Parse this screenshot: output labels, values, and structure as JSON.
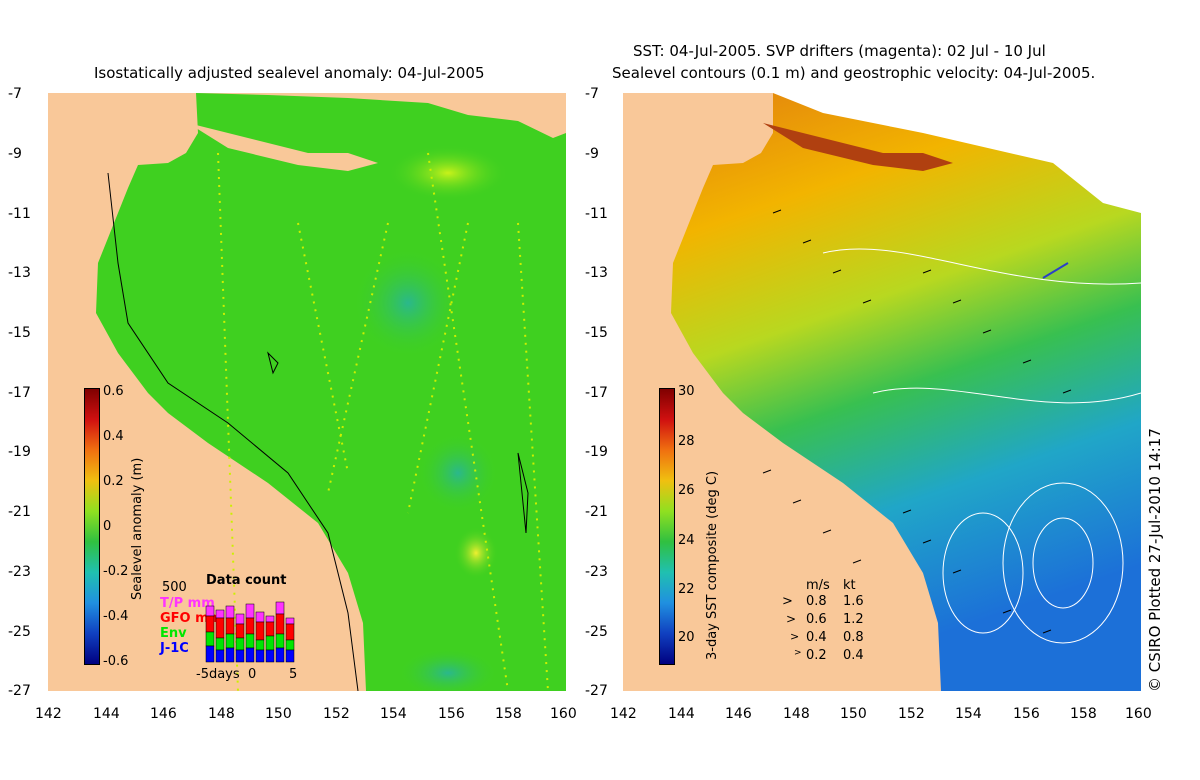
{
  "left_panel": {
    "title": "Isostatically adjusted sealevel anomaly: 04-Jul-2005",
    "colorbar": {
      "label": "Sealevel anomaly (m)",
      "ticks": [
        "0.6",
        "0.4",
        "0.2",
        "0",
        "-0.2",
        "-0.4",
        "-0.6"
      ]
    },
    "data_count": {
      "title": "Data count",
      "scale": "500",
      "legend": [
        {
          "label": "T/P mm",
          "color": "#ff33ff"
        },
        {
          "label": "GFO mm",
          "color": "#ff0000"
        },
        {
          "label": "Env",
          "color": "#00e600"
        },
        {
          "label": "J-1C",
          "color": "#0000ff"
        }
      ],
      "x_ticks": [
        "-5days",
        "0",
        "5"
      ]
    }
  },
  "right_panel": {
    "title_line1": "SST: 04-Jul-2005. SVP drifters (magenta): 02 Jul - 10 Jul",
    "title_line2": "Sealevel contours (0.1 m) and geostrophic velocity: 04-Jul-2005.",
    "colorbar": {
      "label": "3-day SST composite (deg C)",
      "ticks": [
        "30",
        "28",
        "26",
        "24",
        "22",
        "20"
      ]
    },
    "velocity_legend": {
      "header_ms": "m/s",
      "header_kt": "kt",
      "rows": [
        {
          "ms": "0.8",
          "kt": "1.6"
        },
        {
          "ms": "0.6",
          "kt": "1.2"
        },
        {
          "ms": "0.4",
          "kt": "0.8"
        },
        {
          "ms": "0.2",
          "kt": "0.4"
        }
      ]
    }
  },
  "axes": {
    "y_ticks": [
      "-7",
      "-9",
      "-11",
      "-13",
      "-15",
      "-17",
      "-19",
      "-21",
      "-23",
      "-25",
      "-27"
    ],
    "x_ticks": [
      "142",
      "144",
      "146",
      "148",
      "150",
      "152",
      "154",
      "156",
      "158",
      "160"
    ]
  },
  "credit": "© CSIRO Plotted 27-Jul-2010 14:17",
  "colors": {
    "land": "#f9c899",
    "ocean_left": "#3fd020",
    "sst_warm": "#f2a000",
    "sst_cool": "#1e9bd8"
  }
}
